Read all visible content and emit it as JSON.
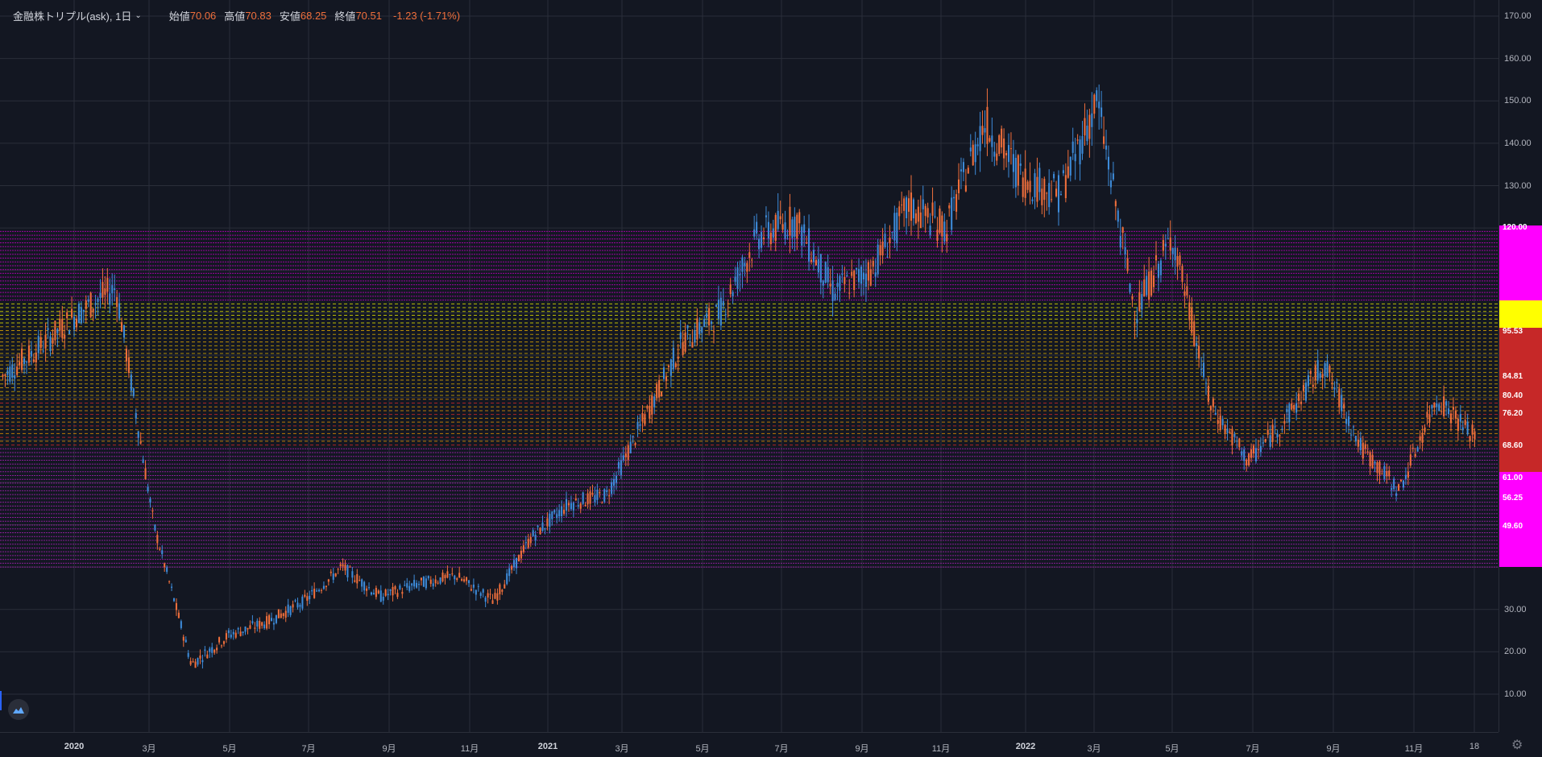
{
  "legend": {
    "symbol": "金融株トリプル(ask), 1日",
    "open_label": "始値",
    "open_value": "70.06",
    "high_label": "高値",
    "high_value": "70.83",
    "low_label": "安値",
    "low_value": "68.25",
    "close_label": "終値",
    "close_value": "70.51",
    "change": "-1.23 (-1.71%)"
  },
  "price_axis": {
    "ticks": [
      "170.00",
      "160.00",
      "150.00",
      "140.00",
      "130.00",
      "30.00",
      "20.00",
      "10.00"
    ],
    "tick_values": [
      170,
      160,
      150,
      140,
      130,
      30,
      20,
      10
    ],
    "level_labels": [
      "120.00",
      "95.53",
      "84.81",
      "80.40",
      "76.20",
      "68.60",
      "61.00",
      "56.25",
      "49.60"
    ],
    "level_values": [
      120,
      95.53,
      84.81,
      80.4,
      76.2,
      68.6,
      61.0,
      56.25,
      49.6
    ]
  },
  "time_axis": {
    "labels": [
      "2020",
      "3月",
      "5月",
      "7月",
      "9月",
      "11月",
      "2021",
      "3月",
      "5月",
      "7月",
      "9月",
      "11月",
      "2022",
      "3月",
      "5月",
      "7月",
      "9月",
      "11月",
      "18"
    ],
    "years": [
      "2020",
      "2021",
      "2022"
    ]
  },
  "colors": {
    "up": "#ef6f3c",
    "down": "#3d8bd9",
    "magenta": "#ff00ff",
    "yellow": "#ffff00",
    "red": "#c62828",
    "grid": "#2a2e39"
  },
  "chart_data": {
    "type": "candlestick",
    "title": "",
    "xlabel": "",
    "ylabel": "",
    "ylim": [
      0,
      172
    ],
    "x": [
      "2019-12",
      "2020-01",
      "2020-02",
      "2020-02-20",
      "2020-03",
      "2020-03-23",
      "2020-04",
      "2020-05",
      "2020-06",
      "2020-06-08",
      "2020-07",
      "2020-08",
      "2020-09",
      "2020-10",
      "2020-11",
      "2020-12",
      "2021-01",
      "2021-02",
      "2021-03",
      "2021-04",
      "2021-05",
      "2021-06",
      "2021-07",
      "2021-08",
      "2021-09",
      "2021-10",
      "2021-11",
      "2021-12",
      "2022-01",
      "2022-02",
      "2022-03",
      "2022-04",
      "2022-05",
      "2022-06",
      "2022-07",
      "2022-08",
      "2022-09",
      "2022-10",
      "2022-11",
      "2022-12"
    ],
    "close": [
      85,
      92,
      100,
      106,
      50,
      17,
      24,
      27,
      32,
      40,
      33,
      36,
      38,
      32,
      47,
      55,
      57,
      75,
      93,
      100,
      118,
      122,
      105,
      110,
      125,
      120,
      145,
      132,
      128,
      150,
      100,
      118,
      78,
      65,
      75,
      88,
      68,
      58,
      80,
      70.51
    ],
    "horizontal_levels": {
      "magenta_band": [
        50,
        62
      ],
      "yellow_band": [
        97,
        103
      ],
      "dashed_zone": [
        68,
        98
      ]
    }
  }
}
